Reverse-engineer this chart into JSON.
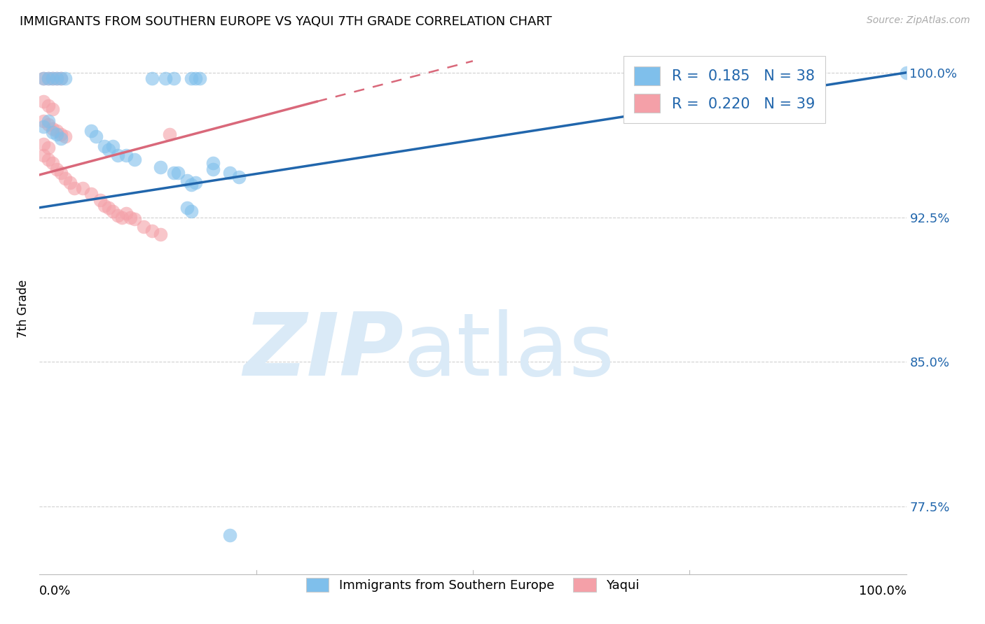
{
  "title": "IMMIGRANTS FROM SOUTHERN EUROPE VS YAQUI 7TH GRADE CORRELATION CHART",
  "source": "Source: ZipAtlas.com",
  "ylabel": "7th Grade",
  "xlim": [
    0.0,
    1.0
  ],
  "ylim": [
    0.74,
    1.015
  ],
  "ytick_vals": [
    0.775,
    0.85,
    0.925,
    1.0
  ],
  "ytick_labels": [
    "77.5%",
    "85.0%",
    "92.5%",
    "100.0%"
  ],
  "legend_blue_R": "0.185",
  "legend_blue_N": "38",
  "legend_pink_R": "0.220",
  "legend_pink_N": "39",
  "blue_color": "#7fbfeb",
  "pink_color": "#f4a0a8",
  "blue_line_color": "#2166ac",
  "pink_line_color": "#d9687a",
  "blue_scatter": [
    [
      0.005,
      0.997
    ],
    [
      0.01,
      0.997
    ],
    [
      0.015,
      0.997
    ],
    [
      0.02,
      0.997
    ],
    [
      0.025,
      0.997
    ],
    [
      0.03,
      0.997
    ],
    [
      0.13,
      0.997
    ],
    [
      0.145,
      0.997
    ],
    [
      0.155,
      0.997
    ],
    [
      0.175,
      0.997
    ],
    [
      0.18,
      0.997
    ],
    [
      0.185,
      0.997
    ],
    [
      0.005,
      0.972
    ],
    [
      0.01,
      0.975
    ],
    [
      0.015,
      0.969
    ],
    [
      0.02,
      0.968
    ],
    [
      0.025,
      0.966
    ],
    [
      0.06,
      0.97
    ],
    [
      0.065,
      0.967
    ],
    [
      0.075,
      0.962
    ],
    [
      0.08,
      0.96
    ],
    [
      0.085,
      0.962
    ],
    [
      0.09,
      0.957
    ],
    [
      0.1,
      0.957
    ],
    [
      0.11,
      0.955
    ],
    [
      0.14,
      0.951
    ],
    [
      0.155,
      0.948
    ],
    [
      0.16,
      0.948
    ],
    [
      0.17,
      0.944
    ],
    [
      0.175,
      0.942
    ],
    [
      0.18,
      0.943
    ],
    [
      0.2,
      0.953
    ],
    [
      0.2,
      0.95
    ],
    [
      0.22,
      0.948
    ],
    [
      0.23,
      0.946
    ],
    [
      0.17,
      0.93
    ],
    [
      0.175,
      0.928
    ],
    [
      0.22,
      0.76
    ],
    [
      1.0,
      1.0
    ]
  ],
  "pink_scatter": [
    [
      0.005,
      0.997
    ],
    [
      0.01,
      0.997
    ],
    [
      0.015,
      0.997
    ],
    [
      0.02,
      0.997
    ],
    [
      0.025,
      0.997
    ],
    [
      0.005,
      0.985
    ],
    [
      0.01,
      0.983
    ],
    [
      0.015,
      0.981
    ],
    [
      0.005,
      0.975
    ],
    [
      0.01,
      0.973
    ],
    [
      0.015,
      0.971
    ],
    [
      0.02,
      0.97
    ],
    [
      0.025,
      0.968
    ],
    [
      0.03,
      0.967
    ],
    [
      0.005,
      0.963
    ],
    [
      0.01,
      0.961
    ],
    [
      0.005,
      0.957
    ],
    [
      0.01,
      0.955
    ],
    [
      0.015,
      0.953
    ],
    [
      0.02,
      0.95
    ],
    [
      0.025,
      0.948
    ],
    [
      0.03,
      0.945
    ],
    [
      0.035,
      0.943
    ],
    [
      0.04,
      0.94
    ],
    [
      0.05,
      0.94
    ],
    [
      0.06,
      0.937
    ],
    [
      0.07,
      0.934
    ],
    [
      0.075,
      0.931
    ],
    [
      0.08,
      0.93
    ],
    [
      0.085,
      0.928
    ],
    [
      0.09,
      0.926
    ],
    [
      0.095,
      0.925
    ],
    [
      0.1,
      0.927
    ],
    [
      0.105,
      0.925
    ],
    [
      0.11,
      0.924
    ],
    [
      0.12,
      0.92
    ],
    [
      0.13,
      0.918
    ],
    [
      0.14,
      0.916
    ],
    [
      0.15,
      0.968
    ]
  ],
  "blue_line": [
    [
      0.0,
      0.93
    ],
    [
      1.0,
      1.0
    ]
  ],
  "pink_line_solid": [
    [
      0.0,
      0.947
    ],
    [
      0.32,
      0.985
    ]
  ],
  "pink_line_dashed": [
    [
      0.32,
      0.985
    ],
    [
      0.5,
      1.006
    ]
  ],
  "watermark_zip": "ZIP",
  "watermark_atlas": "atlas",
  "watermark_color": "#daeaf7",
  "grid_color": "#d0d0d0",
  "background_color": "#ffffff",
  "tick_color": "#2166ac",
  "title_fontsize": 13,
  "source_color": "#aaaaaa"
}
